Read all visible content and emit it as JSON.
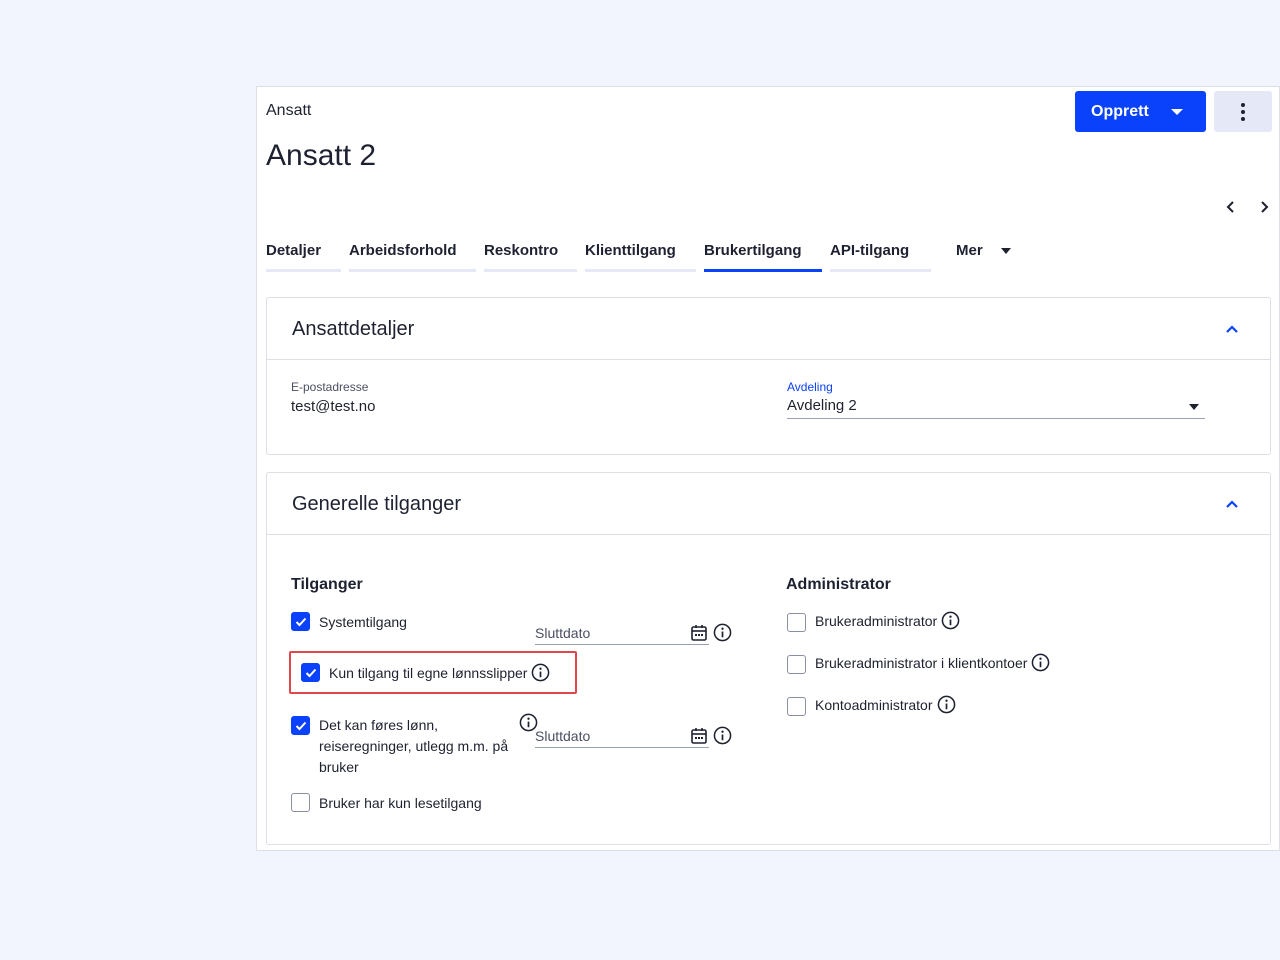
{
  "header": {
    "breadcrumb": "Ansatt",
    "title": "Ansatt 2",
    "create_button": "Opprett"
  },
  "tabs": [
    {
      "label": "Detaljer",
      "active": false
    },
    {
      "label": "Arbeidsforhold",
      "active": false
    },
    {
      "label": "Reskontro",
      "active": false
    },
    {
      "label": "Klienttilgang",
      "active": false
    },
    {
      "label": "Brukertilgang",
      "active": true
    },
    {
      "label": "API-tilgang",
      "active": false
    }
  ],
  "tab_more_label": "Mer",
  "employee_details": {
    "title": "Ansattdetaljer",
    "email_label": "E-postadresse",
    "email_value": "test@test.no",
    "department_label": "Avdeling",
    "department_value": "Avdeling 2"
  },
  "general_access": {
    "title": "Generelle tilganger",
    "access_heading": "Tilganger",
    "admin_heading": "Administrator",
    "access_items": [
      {
        "label": "Systemtilgang",
        "checked": true
      },
      {
        "label": "Kun tilgang til egne lønnsslipper",
        "checked": true
      },
      {
        "label": "Det kan føres lønn, reiseregninger, utlegg m.m. på bruker",
        "checked": true
      },
      {
        "label": "Bruker har kun lesetilgang",
        "checked": false
      }
    ],
    "end_date_placeholder": "Sluttdato",
    "admin_items": [
      {
        "label": "Brukeradministrator",
        "checked": false
      },
      {
        "label": "Brukeradministrator i klientkontoer",
        "checked": false
      },
      {
        "label": "Kontoadministrator",
        "checked": false
      }
    ]
  },
  "colors": {
    "accent": "#0a41fa",
    "highlight": "#e0474c",
    "background": "#f2f5fd"
  }
}
